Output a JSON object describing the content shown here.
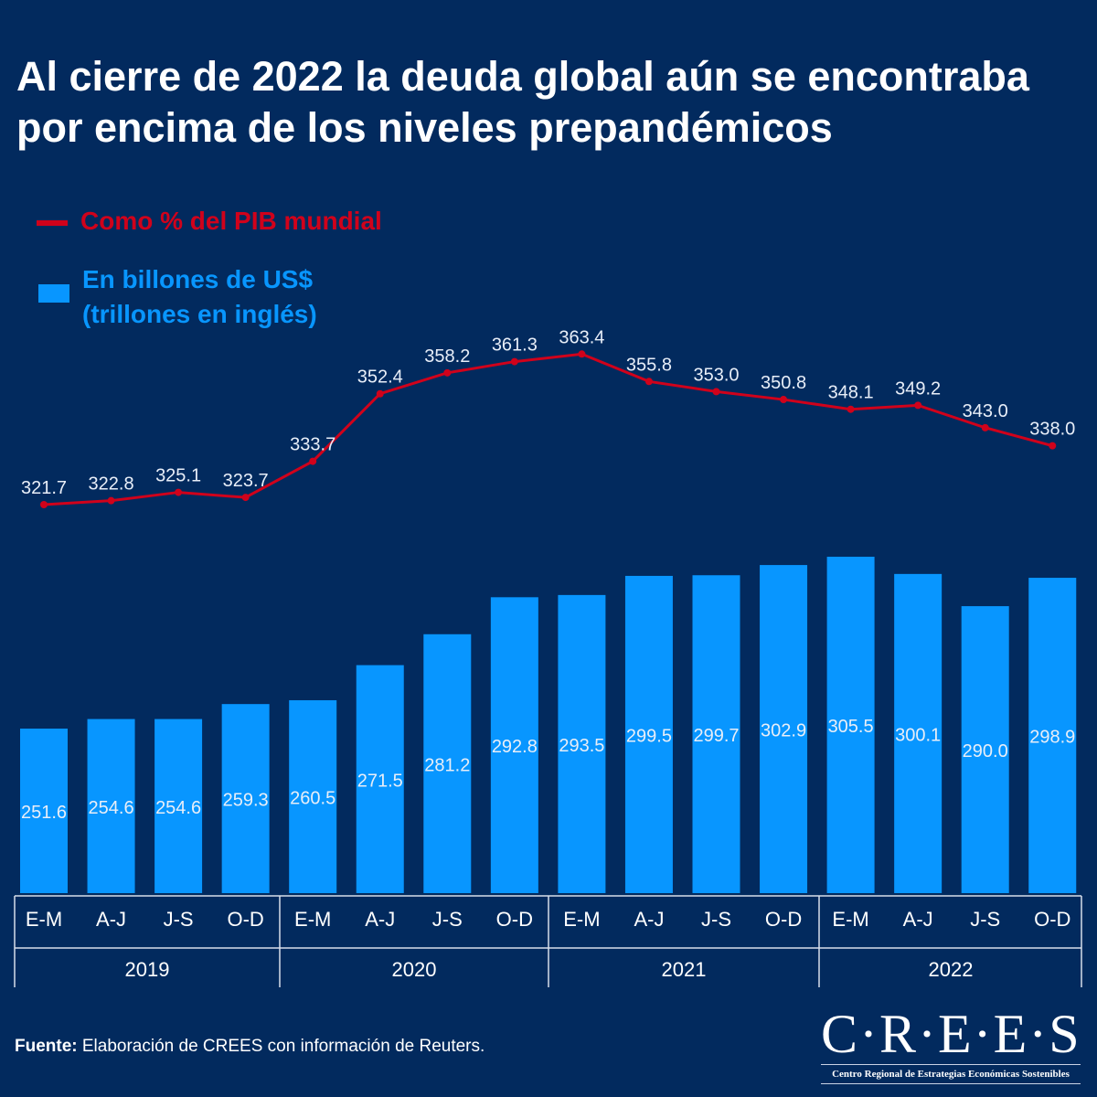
{
  "title": "Al cierre de 2022 la deuda global  aún se encontraba por encima de los niveles prepandémicos",
  "colors": {
    "background": "#022a5e",
    "line": "#d0021b",
    "bars": "#0896ff",
    "text": "#ffffff"
  },
  "chart_data": {
    "type": "bar+line",
    "categories": [
      "E-M",
      "A-J",
      "J-S",
      "O-D",
      "E-M",
      "A-J",
      "J-S",
      "O-D",
      "E-M",
      "A-J",
      "J-S",
      "O-D",
      "E-M",
      "A-J",
      "J-S",
      "O-D"
    ],
    "years": [
      "2019",
      "2020",
      "2021",
      "2022"
    ],
    "series": [
      {
        "name": "Como % del PIB mundial",
        "type": "line",
        "values": [
          321.7,
          322.8,
          325.1,
          323.7,
          333.7,
          352.4,
          358.2,
          361.3,
          363.4,
          355.8,
          353.0,
          350.8,
          348.1,
          349.2,
          343.0,
          338.0
        ]
      },
      {
        "name": "En billones de US$ (trillones en inglés)",
        "type": "bar",
        "values": [
          251.6,
          254.6,
          254.6,
          259.3,
          260.5,
          271.5,
          281.2,
          292.8,
          293.5,
          299.5,
          299.7,
          302.9,
          305.5,
          300.1,
          290.0,
          298.9
        ]
      }
    ],
    "legend": [
      "Como % del PIB mundial",
      "En billones de US$",
      "(trillones en inglés)"
    ],
    "legend_position": "top-left",
    "grid": false
  },
  "source_label": "Fuente:",
  "source_text": " Elaboración de CREES con información de Reuters.",
  "logo": {
    "main": "C·R·E·E·S",
    "sub": "Centro Regional de Estrategias Económicas Sostenibles"
  }
}
